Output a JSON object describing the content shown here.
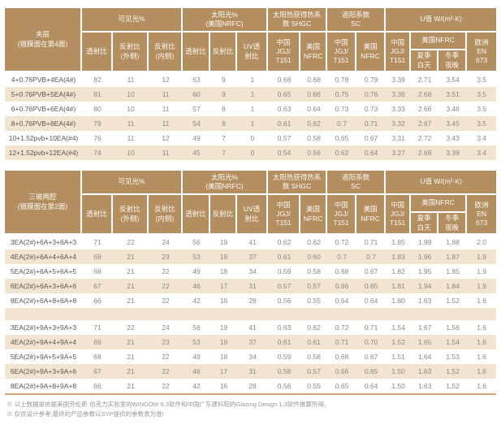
{
  "colors": {
    "header_bg": "#b38e60",
    "stripe_bg": "#f2e4d1",
    "accent_line": "#d2a878",
    "header_text": "#fdf9f3",
    "value_text": "#8c8781",
    "label_text": "#5c5650",
    "footnote_text": "#9b9691"
  },
  "header": {
    "visible_light": {
      "label": "可见光%",
      "subs": [
        "透射比",
        "反射比\n(外侧)",
        "反射比\n(内侧)"
      ]
    },
    "solar": {
      "label": "太阳光%\n(美国NRFC)",
      "subs": [
        "透射比",
        "反射比",
        "UV透\n射比"
      ]
    },
    "shgc": {
      "label": "太阳热获得热系\n数 SHGC",
      "subs": [
        "中国\nJGJ/\nT151",
        "美国\nNFRC"
      ]
    },
    "sc": {
      "label": "遮阳系数\nSC",
      "subs": [
        "中国\nJGJ/\nT151",
        "美国\nNFRC"
      ]
    },
    "u_value": {
      "label": "U值 W/(m²·K)",
      "cn": "中国\nJGJ/\nT151",
      "us": "美国NFRC",
      "us_subs": [
        "夏季\n白天",
        "冬季\n夜晚"
      ],
      "eu": "欧洲\nEN\n673"
    }
  },
  "table1": {
    "row_header": "夹层\n(镀膜面在第4面)",
    "row_groups": [
      [
        {
          "label": "4+0.76PVB+4EA(4#)",
          "values": [
            "82",
            "11",
            "12",
            "63",
            "9",
            "1",
            "0.68",
            "0.68",
            "0.78",
            "0.79",
            "3.39",
            "2.71",
            "3.54",
            "3.5"
          ]
        },
        {
          "label": "5+0.76PVB+5EA(4#)",
          "values": [
            "81",
            "10",
            "11",
            "60",
            "9",
            "1",
            "0.65",
            "0.66",
            "0.75",
            "0.76",
            "3.36",
            "2.68",
            "3.51",
            "3.5"
          ]
        },
        {
          "label": "6+0.76PVB+6EA(4#)",
          "values": [
            "80",
            "10",
            "11",
            "57",
            "8",
            "1",
            "0.63",
            "0.64",
            "0.73",
            "0.73",
            "3.33",
            "2.66",
            "3.48",
            "3.5"
          ]
        },
        {
          "label": "8+0.76PVB+8EA(4#)",
          "values": [
            "79",
            "11",
            "11",
            "54",
            "8",
            "1",
            "0.61",
            "0.62",
            "0.7",
            "0.71",
            "3.32",
            "2.67",
            "3.45",
            "3.5"
          ]
        },
        {
          "label": "10+1.52pvb+10EA(#4)",
          "values": [
            "76",
            "11",
            "12",
            "49",
            "7",
            "0",
            "0.57",
            "0.58",
            "0.65",
            "0.67",
            "3.31",
            "2.72",
            "3.43",
            "3.4"
          ]
        },
        {
          "label": "12+1.52pvb+12EA(#4)",
          "values": [
            "74",
            "10",
            "11",
            "45",
            "7",
            "0",
            "0.54",
            "0.56",
            "0.62",
            "0.64",
            "3.27",
            "2.69",
            "3.39",
            "3.4"
          ]
        }
      ]
    ]
  },
  "table2": {
    "row_header": "三玻两腔\n(镀膜面在第2面)",
    "row_groups": [
      [
        {
          "label": "3EA(2#)+6A+3+6A+3",
          "values": [
            "71",
            "22",
            "24",
            "56",
            "19",
            "41",
            "0.62",
            "0.62",
            "0.72",
            "0.71",
            "1.85",
            "1.99",
            "1.88",
            "2.0"
          ]
        },
        {
          "label": "4EA(2#)+6A+4+6A+4",
          "values": [
            "69",
            "21",
            "23",
            "53",
            "19",
            "37",
            "0.61",
            "0.60",
            "0.7",
            "0.7",
            "1.83",
            "1.96",
            "1.87",
            "1.9"
          ]
        },
        {
          "label": "5EA(2#)+6A+5+6A+5",
          "values": [
            "68",
            "21",
            "22",
            "49",
            "18",
            "34",
            "0.59",
            "0.58",
            "0.68",
            "0.67",
            "1.82",
            "1.95",
            "1.85",
            "1.9"
          ]
        },
        {
          "label": "6EA(2#)+6A+3+6A+6",
          "values": [
            "67",
            "21",
            "22",
            "46",
            "17",
            "31",
            "0.57",
            "0.57",
            "0.66",
            "0.65",
            "1.81",
            "1.94",
            "1.84",
            "1.9"
          ]
        },
        {
          "label": "8EA(2#)+6A+8+6A+8",
          "values": [
            "66",
            "21",
            "22",
            "42",
            "16",
            "28",
            "0.56",
            "0.55",
            "0.64",
            "0.64",
            "1.80",
            "1.63",
            "1.52",
            "1.6"
          ]
        }
      ],
      [
        {
          "label": "3EA(2#)+9A+3+9A+3",
          "values": [
            "71",
            "22",
            "24",
            "56",
            "19",
            "41",
            "0.63",
            "0.62",
            "0.72",
            "0.71",
            "1.54",
            "1.67",
            "1.56",
            "1.6"
          ]
        },
        {
          "label": "4EA(2#)+9A+4+9A+4",
          "values": [
            "69",
            "21",
            "23",
            "53",
            "19",
            "37",
            "0.61",
            "0.61",
            "0.71",
            "0.70",
            "1.52",
            "1.65",
            "1.54",
            "1.6"
          ]
        },
        {
          "label": "5EA(2#)+9A+5+9A+5",
          "values": [
            "68",
            "21",
            "22",
            "49",
            "18",
            "34",
            "0.59",
            "0.58",
            "0.68",
            "0.67",
            "1.51",
            "1.64",
            "1.53",
            "1.6"
          ]
        },
        {
          "label": "6EA(2#)+9A+3+9A+6",
          "values": [
            "67",
            "21",
            "22",
            "46",
            "17",
            "31",
            "0.58",
            "0.57",
            "0.66",
            "0.65",
            "1.50",
            "1.63",
            "1.52",
            "1.6"
          ]
        },
        {
          "label": "8EA(2#)+9A+8+9A+8",
          "values": [
            "66",
            "21",
            "22",
            "42",
            "16",
            "28",
            "0.56",
            "0.55",
            "0.65",
            "0.64",
            "1.50",
            "1.63",
            "1.52",
            "1.6"
          ]
        }
      ]
    ]
  },
  "footnotes": [
    "※ 以上数据是依据美国劳伦斯·伯克力实验室的WINDOW 6.3软件和中国广东建科院的Glazing Design 1.3软件推算所得。",
    "※ 仅供设计参考,最终的产品参数以SYP提供的参数表为准!"
  ]
}
